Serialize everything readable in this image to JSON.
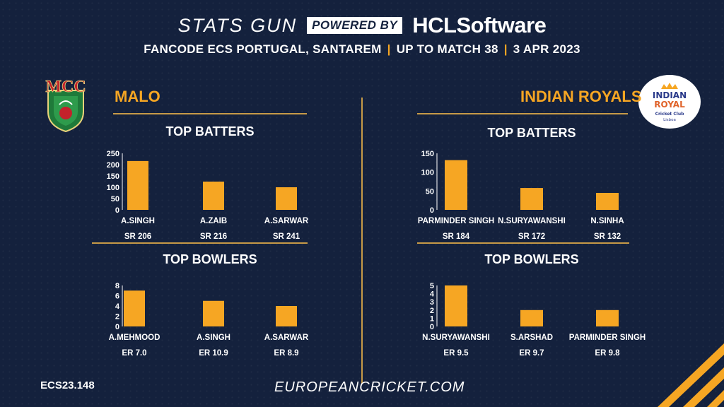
{
  "header": {
    "stats_gun": "STATS GUN",
    "powered_by": "POWERED BY",
    "sponsor": "HCLSoftware",
    "event": "FANCODE ECS PORTUGAL, SANTAREM",
    "up_to": "UP TO MATCH  38",
    "date": "3 APR 2023"
  },
  "teams": [
    {
      "name": "MALO",
      "logo_text": "MCC"
    },
    {
      "name": "INDIAN ROYALS",
      "logo_text": [
        "INDIAN",
        "ROYAL",
        "Cricket Club",
        "Lisboa"
      ]
    }
  ],
  "colors": {
    "background": "#14213d",
    "bar": "#f6a623",
    "accent_line": "#c79a47",
    "team_name": "#f6a623"
  },
  "chart_data": [
    {
      "type": "bar",
      "title": "TOP BATTERS",
      "team": "MALO",
      "categories": [
        "A.SINGH",
        "A.ZAIB",
        "A.SARWAR"
      ],
      "values": [
        216,
        125,
        100
      ],
      "sublabels": [
        "SR 206",
        "SR 216",
        "SR 241"
      ],
      "yticks": [
        0,
        50,
        100,
        150,
        200,
        250
      ],
      "ylim": [
        0,
        250
      ]
    },
    {
      "type": "bar",
      "title": "TOP BOWLERS",
      "team": "MALO",
      "categories": [
        "A.MEHMOOD",
        "A.SINGH",
        "A.SARWAR"
      ],
      "values": [
        7,
        5,
        4
      ],
      "sublabels": [
        "ER 7.0",
        "ER 10.9",
        "ER 8.9"
      ],
      "yticks": [
        0,
        2,
        4,
        6,
        8
      ],
      "ylim": [
        0,
        8
      ]
    },
    {
      "type": "bar",
      "title": "TOP BATTERS",
      "team": "INDIAN ROYALS",
      "categories": [
        "PARMINDER SINGH",
        "N.SURYAWANSHI",
        "N.SINHA"
      ],
      "values": [
        132,
        58,
        45
      ],
      "sublabels": [
        "SR 184",
        "SR 172",
        "SR 132"
      ],
      "yticks": [
        0,
        50,
        100,
        150
      ],
      "ylim": [
        0,
        150
      ]
    },
    {
      "type": "bar",
      "title": "TOP BOWLERS",
      "team": "INDIAN ROYALS",
      "categories": [
        "N.SURYAWANSHI",
        "S.ARSHAD",
        "PARMINDER SINGH"
      ],
      "values": [
        5,
        2,
        2
      ],
      "sublabels": [
        "ER 9.5",
        "ER 9.7",
        "ER 9.8"
      ],
      "yticks": [
        0,
        1,
        2,
        3,
        4,
        5
      ],
      "ylim": [
        0,
        5
      ]
    }
  ],
  "footer": {
    "code": "ECS23.148",
    "url": "EUROPEANCRICKET.COM"
  }
}
